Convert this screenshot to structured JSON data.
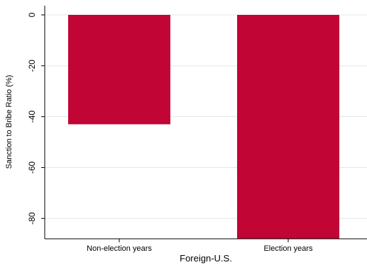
{
  "chart_data": {
    "type": "bar",
    "title": "",
    "xlabel": "Foreign-U.S.",
    "ylabel": "Sanction to Bribe Ratio (%)",
    "categories": [
      "Non-election years",
      "Election years"
    ],
    "values": [
      -43,
      -88
    ],
    "ylim": [
      -88,
      0
    ],
    "yticks": [
      0,
      -20,
      -40,
      -60,
      -80
    ],
    "grid": true,
    "legend": "none",
    "colors": {
      "bar": "#c10534",
      "grid": "#dfe7ea",
      "axis": "#000000"
    }
  }
}
